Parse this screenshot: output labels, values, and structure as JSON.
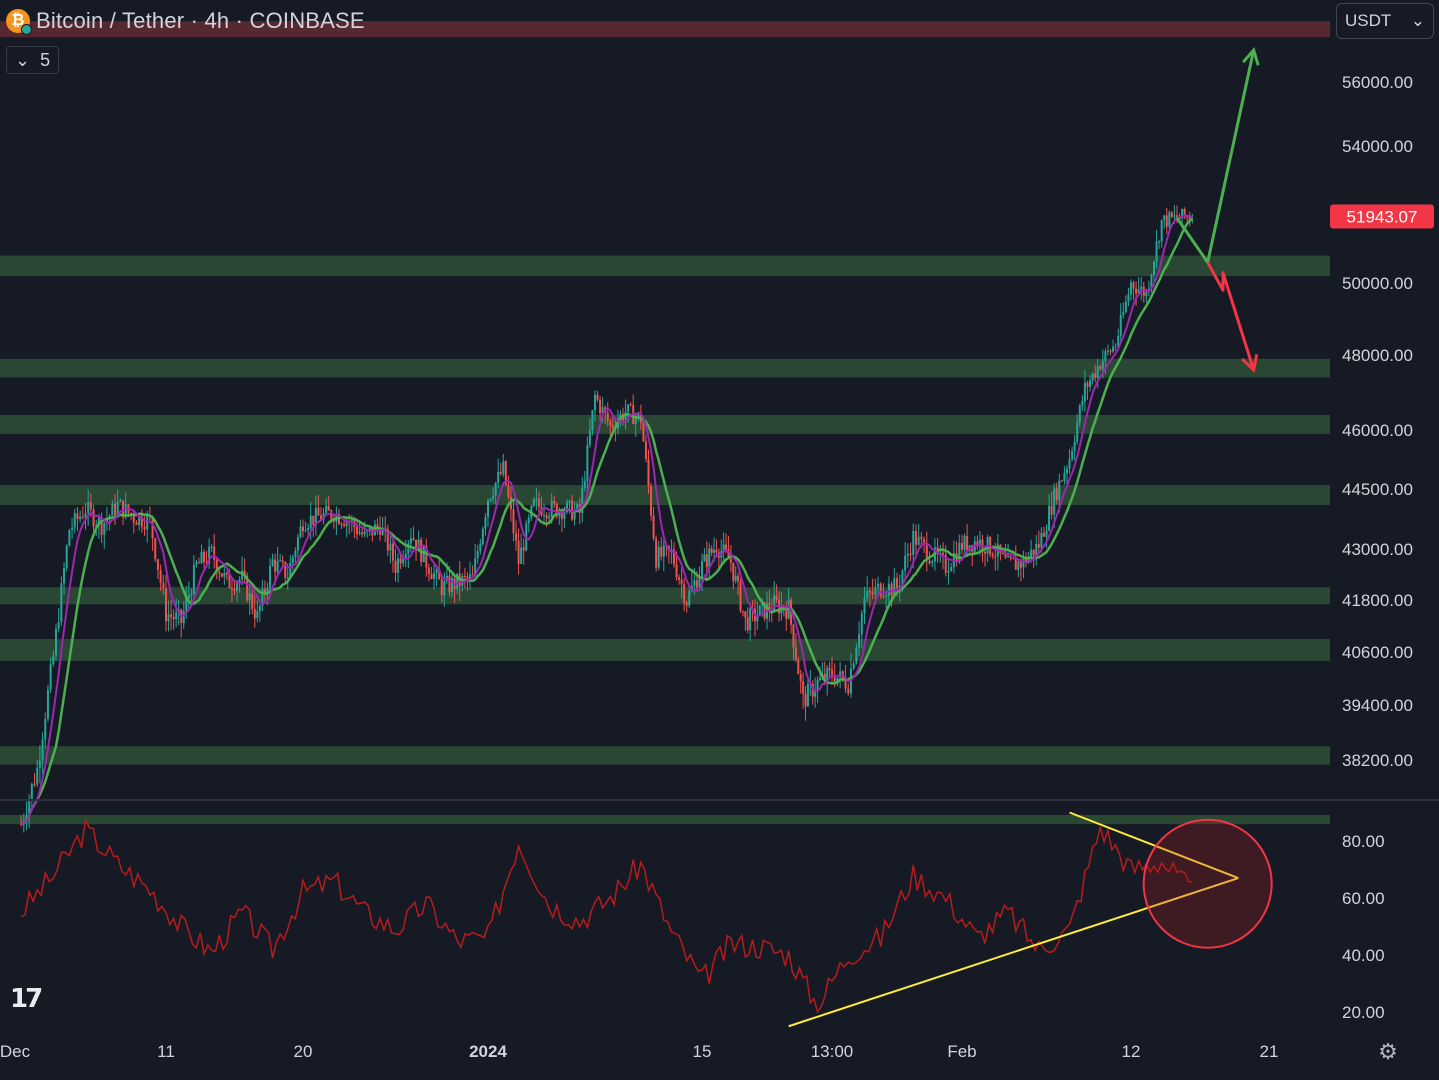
{
  "header": {
    "symbol_title": "Bitcoin / Tether · 4h · COINBASE",
    "indicator_count": "5",
    "collapse_icon": "chevron-down-icon"
  },
  "currency": {
    "selected": "USDT",
    "icon": "chevron-down-icon"
  },
  "logo_text": "17",
  "colors": {
    "background": "#161a25",
    "zone_green": "#2b4a35",
    "zone_red": "#5a2a30",
    "up_candle": "#26a69a",
    "down_candle": "#ef5350",
    "ma_fast": "#9c27b0",
    "ma_slow": "#4caf50",
    "rsi_line": "#b71c1c",
    "trendline": "#ffeb3b",
    "arrow_up": "#4caf50",
    "arrow_down": "#f23645",
    "price_label_bg": "#f23645"
  },
  "chart_data": [
    {
      "type": "candlestick",
      "title": "Bitcoin / Tether · 4h · COINBASE",
      "ylabel": "USDT",
      "ylim": [
        36700,
        57900
      ],
      "y_ticks": [
        56000,
        54000,
        50000,
        48000,
        46000,
        44500,
        43000,
        41800,
        40600,
        39400,
        38200
      ],
      "y_tick_labels": [
        "56000.00",
        "54000.00",
        "50000.00",
        "48000.00",
        "46000.00",
        "44500.00",
        "43000.00",
        "41800.00",
        "40600.00",
        "39400.00",
        "38200.00"
      ],
      "x_tick_labels": [
        "Dec",
        "11",
        "20",
        "2024",
        "15",
        "13:00",
        "Feb",
        "12",
        "21"
      ],
      "current_price": 51943.07,
      "current_price_label": "51943.07",
      "close_path": [
        [
          "Dec 2",
          36800
        ],
        [
          "Dec 3",
          38000
        ],
        [
          "Dec 4",
          40500
        ],
        [
          "Dec 5",
          43500
        ],
        [
          "Dec 6",
          44000
        ],
        [
          "Dec 7",
          43600
        ],
        [
          "Dec 8",
          44100
        ],
        [
          "Dec 9",
          43800
        ],
        [
          "Dec 10",
          43700
        ],
        [
          "Dec 11",
          41500
        ],
        [
          "Dec 12",
          41300
        ],
        [
          "Dec 13",
          42600
        ],
        [
          "Dec 14",
          42900
        ],
        [
          "Dec 15",
          42200
        ],
        [
          "Dec 16",
          42300
        ],
        [
          "Dec 17",
          41400
        ],
        [
          "Dec 18",
          42700
        ],
        [
          "Dec 19",
          42400
        ],
        [
          "Dec 20",
          43700
        ],
        [
          "Dec 21",
          43800
        ],
        [
          "Dec 22",
          43900
        ],
        [
          "Dec 23",
          43700
        ],
        [
          "Dec 24",
          43300
        ],
        [
          "Dec 25",
          43600
        ],
        [
          "Dec 26",
          42600
        ],
        [
          "Dec 27",
          43400
        ],
        [
          "Dec 28",
          42700
        ],
        [
          "Dec 29",
          42100
        ],
        [
          "Dec 30",
          42200
        ],
        [
          "Dec 31",
          42300
        ],
        [
          "Jan 1",
          44300
        ],
        [
          "Jan 2",
          45000
        ],
        [
          "Jan 3",
          42700
        ],
        [
          "Jan 4",
          44100
        ],
        [
          "Jan 5",
          44000
        ],
        [
          "Jan 6",
          44000
        ],
        [
          "Jan 7",
          43900
        ],
        [
          "Jan 8",
          46900
        ],
        [
          "Jan 9",
          46100
        ],
        [
          "Jan 10",
          46500
        ],
        [
          "Jan 11",
          46300
        ],
        [
          "Jan 12",
          42800
        ],
        [
          "Jan 13",
          42900
        ],
        [
          "Jan 14",
          41800
        ],
        [
          "Jan 15",
          42600
        ],
        [
          "Jan 16",
          43100
        ],
        [
          "Jan 17",
          42700
        ],
        [
          "Jan 18",
          41300
        ],
        [
          "Jan 19",
          41500
        ],
        [
          "Jan 20",
          41700
        ],
        [
          "Jan 21",
          41600
        ],
        [
          "Jan 22",
          39500
        ],
        [
          "Jan 23",
          39900
        ],
        [
          "Jan 24",
          40100
        ],
        [
          "Jan 25",
          39900
        ],
        [
          "Jan 26",
          41800
        ],
        [
          "Jan 27",
          42100
        ],
        [
          "Jan 28",
          42100
        ],
        [
          "Jan 29",
          43300
        ],
        [
          "Jan 30",
          42900
        ],
        [
          "Jan 31",
          42600
        ],
        [
          "Feb 1",
          43100
        ],
        [
          "Feb 2",
          43200
        ],
        [
          "Feb 3",
          43000
        ],
        [
          "Feb 4",
          42600
        ],
        [
          "Feb 5",
          42700
        ],
        [
          "Feb 6",
          43100
        ],
        [
          "Feb 7",
          44300
        ],
        [
          "Feb 8",
          45300
        ],
        [
          "Feb 9",
          47100
        ],
        [
          "Feb 10",
          47800
        ],
        [
          "Feb 11",
          48300
        ],
        [
          "Feb 12",
          50000
        ],
        [
          "Feb 13",
          49700
        ],
        [
          "Feb 14",
          51800
        ],
        [
          "Feb 15",
          51900
        ],
        [
          "Feb 16",
          51943
        ]
      ],
      "series": [
        {
          "name": "",
          "type": "moving-average-fast"
        },
        {
          "name": "",
          "type": "moving-average-slow"
        }
      ],
      "support_zones": [
        {
          "color": "green",
          "low": 50200,
          "high": 50800
        },
        {
          "color": "green",
          "low": 47400,
          "high": 47900
        },
        {
          "color": "green",
          "low": 45900,
          "high": 46400
        },
        {
          "color": "green",
          "low": 44100,
          "high": 44600
        },
        {
          "color": "green",
          "low": 41700,
          "high": 42100
        },
        {
          "color": "green",
          "low": 40400,
          "high": 40900
        },
        {
          "color": "green",
          "low": 38100,
          "high": 38500
        },
        {
          "color": "green",
          "low": 36800,
          "high": 37000
        },
        {
          "color": "red",
          "low": 57400,
          "high": 57900
        }
      ],
      "annotations": [
        {
          "type": "arrow",
          "direction": "up",
          "path": [
            [
              "Feb 15",
              51900
            ],
            [
              "Feb 17",
              50600
            ],
            [
              "Feb 20",
              57000
            ]
          ]
        },
        {
          "type": "arrow",
          "direction": "down",
          "path": [
            [
              "Feb 17",
              50600
            ],
            [
              "Feb 18",
              49800
            ],
            [
              "Feb 18",
              50300
            ],
            [
              "Feb 20",
              47600
            ]
          ]
        }
      ]
    },
    {
      "type": "line",
      "title": "",
      "ylabel": "",
      "ylim": [
        17,
        92
      ],
      "y_ticks": [
        80,
        60,
        40,
        20
      ],
      "y_tick_labels": [
        "80.00",
        "60.00",
        "40.00",
        "20.00"
      ],
      "series": [
        {
          "name": "",
          "x": [
            "Dec 2",
            "Dec 4",
            "Dec 6",
            "Dec 8",
            "Dec 10",
            "Dec 12",
            "Dec 14",
            "Dec 16",
            "Dec 18",
            "Dec 20",
            "Dec 22",
            "Dec 24",
            "Dec 26",
            "Dec 28",
            "Dec 30",
            "Jan 1",
            "Jan 3",
            "Jan 5",
            "Jan 7",
            "Jan 9",
            "Jan 11",
            "Jan 13",
            "Jan 15",
            "Jan 17",
            "Jan 19",
            "Jan 21",
            "Jan 23",
            "Jan 25",
            "Jan 27",
            "Jan 29",
            "Jan 31",
            "Feb 2",
            "Feb 4",
            "Feb 6",
            "Feb 8",
            "Feb 10",
            "Feb 12",
            "Feb 14",
            "Feb 16"
          ],
          "values": [
            55,
            68,
            84,
            72,
            63,
            50,
            41,
            55,
            42,
            62,
            66,
            55,
            49,
            58,
            45,
            46,
            80,
            58,
            52,
            60,
            72,
            48,
            31,
            44,
            43,
            40,
            22,
            40,
            46,
            68,
            60,
            46,
            55,
            42,
            49,
            85,
            70,
            73,
            62
          ]
        }
      ],
      "annotations": [
        {
          "type": "trendline",
          "from": [
            "Jan 21",
            15
          ],
          "to": [
            "Feb 19",
            67
          ]
        },
        {
          "type": "trendline",
          "from": [
            "Feb 8",
            90
          ],
          "to": [
            "Feb 19",
            67
          ]
        },
        {
          "type": "circle",
          "center": [
            "Feb 17",
            65
          ]
        }
      ]
    }
  ]
}
